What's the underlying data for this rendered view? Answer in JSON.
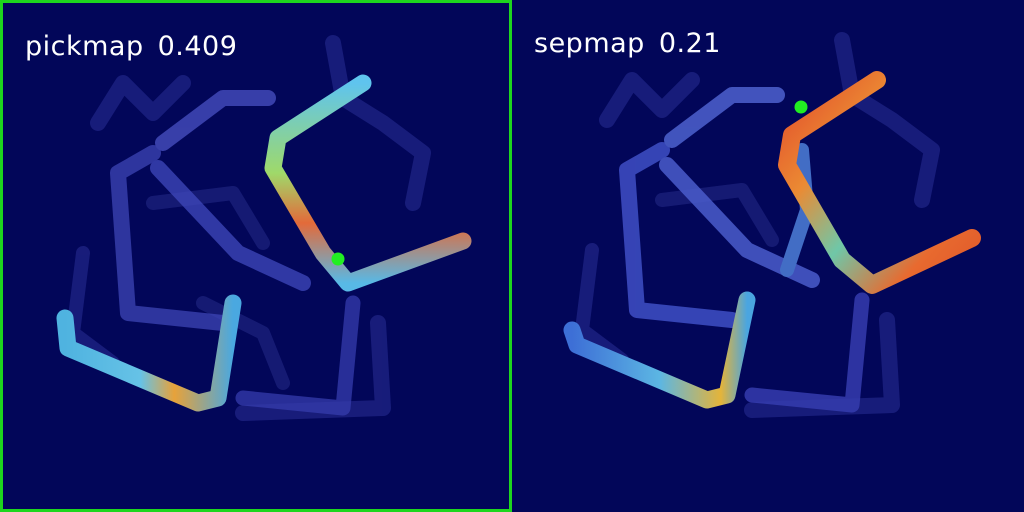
{
  "panels": [
    {
      "id": "pickmap",
      "name": "pickmap",
      "score": "0.409",
      "selected": true
    },
    {
      "id": "sepmap",
      "name": "sepmap",
      "score": "0.21",
      "selected": false
    }
  ],
  "colors": {
    "background": "#020659",
    "selection_border": "#1ed61e",
    "marker": "#22ee22",
    "rope_base": "#4a52c8",
    "heat_high": "#e04a2a",
    "heat_mid": "#f2c23a",
    "heat_low": "#4fb8e6"
  }
}
